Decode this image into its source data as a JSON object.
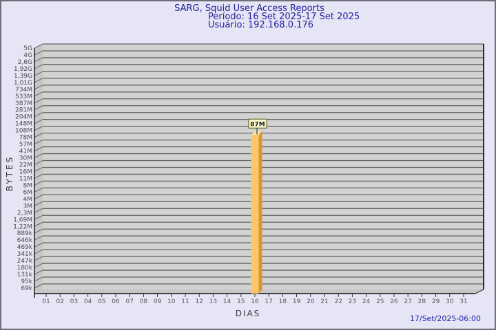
{
  "header": {
    "title": "SARG, Squid User Access Reports",
    "period": "Período: 16 Set 2025-17 Set 2025",
    "user": "Usuário: 192.168.0.176"
  },
  "footer": {
    "generated": "17/Set/2025-06:00"
  },
  "chart_data": {
    "type": "bar",
    "title": "SARG, Squid User Access Reports",
    "subtitle": [
      "Período: 16 Set 2025-17 Set 2025",
      "Usuário: 192.168.0.176"
    ],
    "xlabel": "DIAS",
    "ylabel": "BYTES",
    "x_categories": [
      "01",
      "02",
      "03",
      "04",
      "05",
      "06",
      "07",
      "08",
      "09",
      "10",
      "11",
      "12",
      "13",
      "14",
      "15",
      "16",
      "17",
      "18",
      "19",
      "20",
      "21",
      "22",
      "23",
      "24",
      "25",
      "26",
      "27",
      "28",
      "29",
      "30",
      "31"
    ],
    "y_tick_labels": [
      "5G",
      "4G",
      "2,6G",
      "1,92G",
      "1,39G",
      "1,01G",
      "734M",
      "533M",
      "387M",
      "281M",
      "204M",
      "148M",
      "108M",
      "78M",
      "57M",
      "41M",
      "30M",
      "22M",
      "16M",
      "11M",
      "8M",
      "6M",
      "4M",
      "3M",
      "2,3M",
      "1,69M",
      "1,22M",
      "889k",
      "646k",
      "469k",
      "341k",
      "247k",
      "180k",
      "131k",
      "95k",
      "69k"
    ],
    "y_scale": "log",
    "grid": true,
    "bars": [
      {
        "day": "16",
        "value": "87M"
      }
    ],
    "colors": {
      "page_bg": "#E5E5F5",
      "plot_bg": "#D2D2D2",
      "wall": "#C6C6C6",
      "grid": "#636363",
      "axis": "#111111",
      "tick_text": "#4a4a4a",
      "title_text": "#22229B",
      "footer_text": "#2222AA",
      "bar_face": "#FDC66B",
      "bar_side": "#D9982F",
      "bar_top": "#F0DFA8",
      "label_box_bg": "#FBFBD0",
      "label_box_border": "#6B6B2E",
      "label_text": "#1a1a1a"
    }
  }
}
